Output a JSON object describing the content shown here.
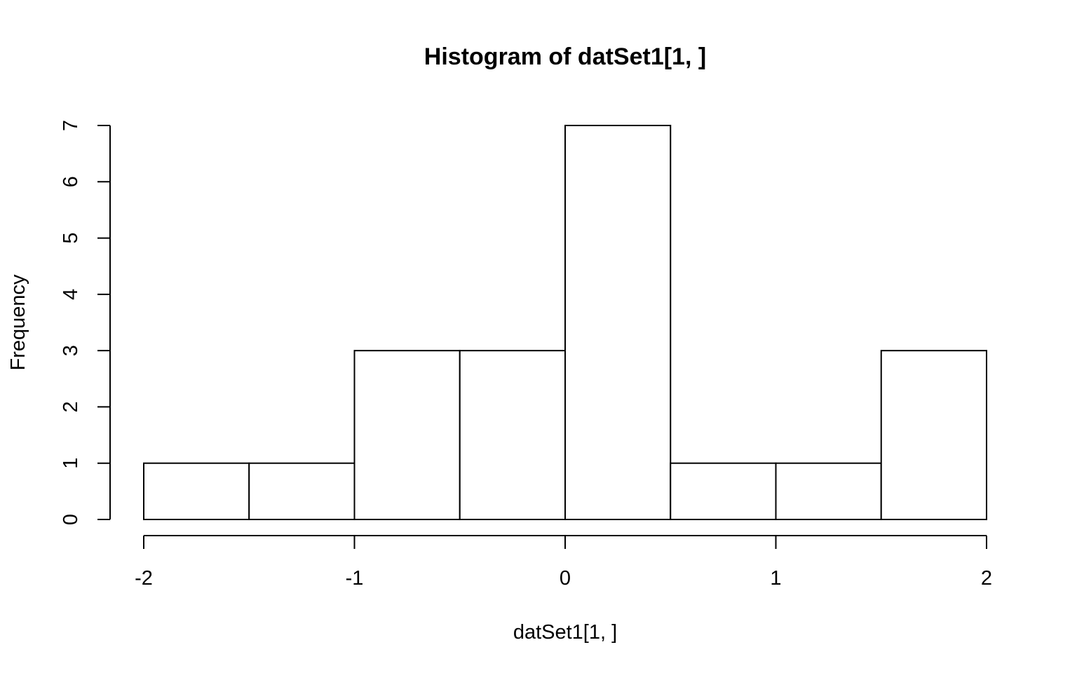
{
  "chart_data": {
    "type": "bar",
    "subtype": "histogram",
    "title": "Histogram of datSet1[1, ]",
    "xlabel": "datSet1[1, ]",
    "ylabel": "Frequency",
    "bin_edges": [
      -2,
      -1.5,
      -1,
      -0.5,
      0,
      0.5,
      1,
      1.5,
      2
    ],
    "counts": [
      1,
      1,
      3,
      3,
      7,
      1,
      1,
      3
    ],
    "xlim": [
      -2,
      2
    ],
    "ylim": [
      0,
      7
    ],
    "x_ticks": [
      "-2",
      "-1",
      "0",
      "1",
      "2"
    ],
    "y_ticks": [
      "0",
      "1",
      "2",
      "3",
      "4",
      "5",
      "6",
      "7"
    ],
    "grid": false,
    "legend": "none",
    "bar_fill": "#ffffff",
    "bar_stroke": "#000000"
  }
}
